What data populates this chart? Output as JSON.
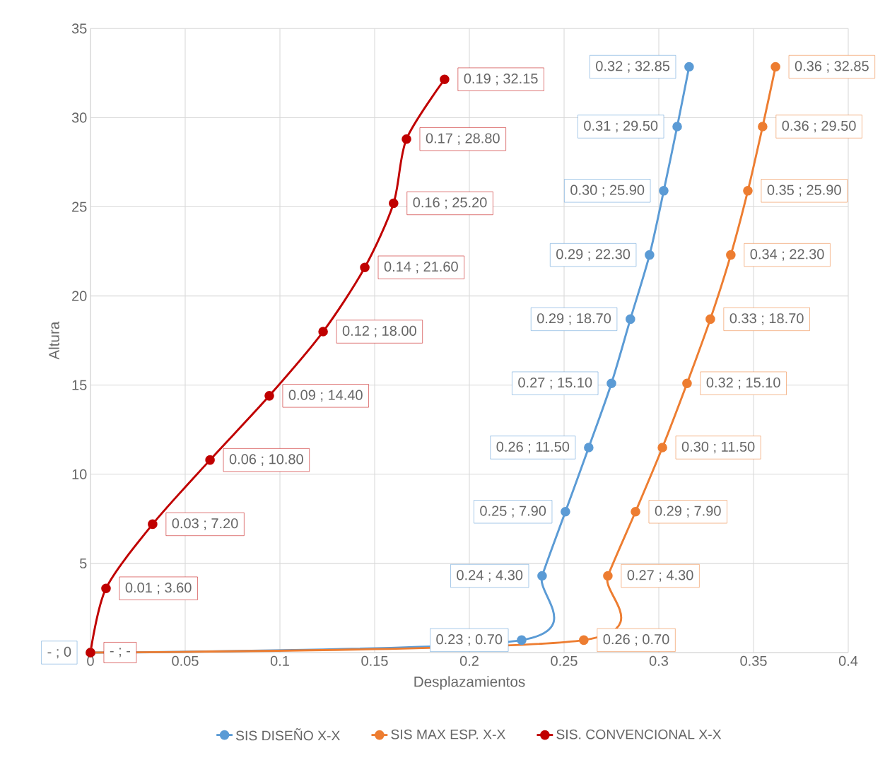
{
  "chart_data": {
    "type": "line",
    "xlabel": "Desplazamientos",
    "ylabel": "Altura",
    "xlim": [
      0,
      0.4
    ],
    "xticks": [
      0,
      0.05,
      0.1,
      0.15,
      0.2,
      0.25,
      0.3,
      0.35,
      0.4
    ],
    "ylim": [
      0,
      35
    ],
    "yticks": [
      {
        "value": 0,
        "label": null
      },
      5,
      10,
      15,
      20,
      25,
      30,
      35
    ],
    "grid": true,
    "legend": "bottom",
    "marker": "circle",
    "series": [
      {
        "name": "SIS DISEÑO X-X",
        "color": "#5b9bd5",
        "x": [
          0,
          0.2276,
          0.2384,
          0.2507,
          0.263,
          0.275,
          0.285,
          0.2951,
          0.3026,
          0.3097,
          0.316
        ],
        "values": [
          0,
          0.7,
          4.3,
          7.9,
          11.5,
          15.1,
          18.7,
          22.3,
          25.9,
          29.5,
          32.85
        ],
        "value_labels": [
          "- ; 0",
          "0.23 ;  0.70",
          "0.24 ;  4.30",
          "0.25 ;  7.90",
          "0.26 ;  11.50",
          "0.27 ;  15.10",
          "0.29 ;  18.70",
          "0.29 ;  22.30",
          "0.30 ;  25.90",
          "0.31 ;  29.50",
          "0.32 ;  32.85"
        ]
      },
      {
        "name": "SIS MAX ESP. X-X",
        "color": "#ed7d31",
        "x": [
          0,
          0.2604,
          0.2731,
          0.2877,
          0.3019,
          0.3149,
          0.3272,
          0.338,
          0.347,
          0.3548,
          0.3616
        ],
        "values": [
          0,
          0.7,
          4.3,
          7.9,
          11.5,
          15.1,
          18.7,
          22.3,
          25.9,
          29.5,
          32.85
        ],
        "value_labels": [
          null,
          "0.26 ;  0.70",
          "0.27 ;  4.30",
          "0.29 ;  7.90",
          "0.30 ;  11.50",
          "0.32 ;  15.10",
          "0.33 ;  18.70",
          "0.34 ;  22.30",
          "0.35 ;  25.90",
          "0.36 ;  29.50",
          "0.36 ;  32.85"
        ]
      },
      {
        "name": "SIS. CONVENCIONAL X-X",
        "color": "#c00000",
        "x": [
          0,
          0.0082,
          0.0328,
          0.0631,
          0.0944,
          0.1228,
          0.1448,
          0.16,
          0.1668,
          0.1869
        ],
        "values": [
          0,
          3.6,
          7.2,
          10.8,
          14.4,
          18.0,
          21.6,
          25.2,
          28.8,
          32.15
        ],
        "value_labels": [
          "- ; -",
          "0.01 ;  3.60",
          "0.03 ;  7.20",
          "0.06 ;  10.80",
          "0.09 ;  14.40",
          "0.12 ;  18.00",
          "0.14 ;  21.60",
          "0.16 ;  25.20",
          "0.17 ;  28.80",
          "0.19 ;  32.15"
        ]
      }
    ]
  }
}
